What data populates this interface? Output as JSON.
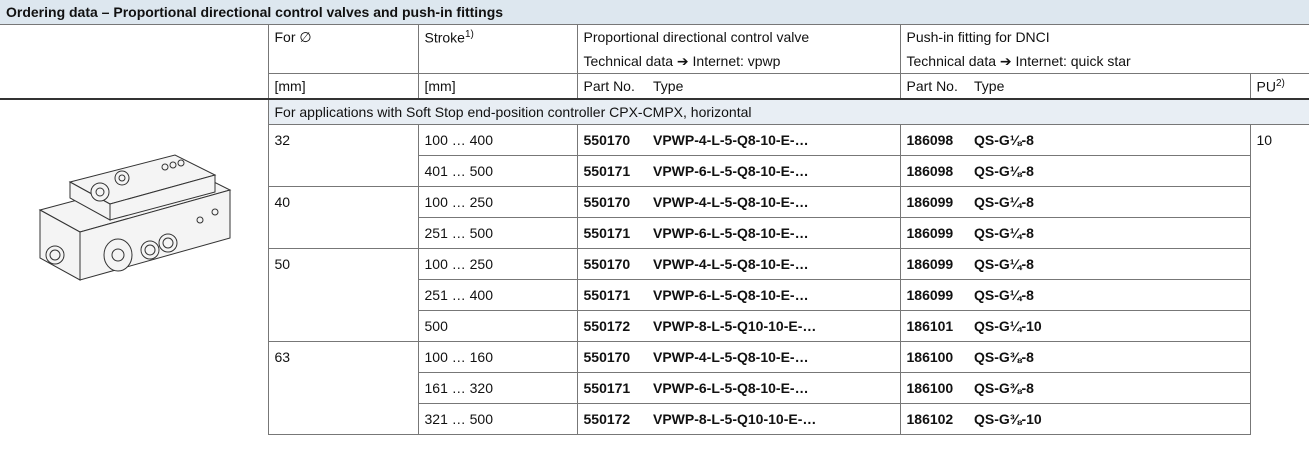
{
  "header": {
    "title": "Ordering data – Proportional directional control valves and push-in fittings"
  },
  "columns": {
    "diameter": "For ∅",
    "stroke": "Stroke",
    "stroke_note": "1)",
    "valve": "Proportional directional control valve",
    "valve_info": "Technical data ➔ Internet: vpwp",
    "fitting": "Push-in fitting for DNCI",
    "fitting_info": "Technical data ➔ Internet: quick star",
    "diameter_unit": "[mm]",
    "stroke_unit": "[mm]",
    "valve_part_no": "Part No.",
    "valve_type": "Type",
    "fitting_part_no": "Part No.",
    "fitting_type": "Type",
    "pu": "PU",
    "pu_note": "2)"
  },
  "subheader": "For applications with Soft Stop end-position controller CPX-CMPX, horizontal",
  "pu": "10",
  "groups": [
    {
      "diameter": "32",
      "rows": [
        {
          "stroke": "100 … 400",
          "part_no": "550170",
          "type": "VPWP-4-L-5-Q8-10-E-…",
          "fitting_part_no": "186098",
          "fitting_type": "QS-G⅛-8"
        },
        {
          "stroke": "401 … 500",
          "part_no": "550171",
          "type": "VPWP-6-L-5-Q8-10-E-…",
          "fitting_part_no": "186098",
          "fitting_type": "QS-G⅛-8"
        }
      ]
    },
    {
      "diameter": "40",
      "rows": [
        {
          "stroke": "100 … 250",
          "part_no": "550170",
          "type": "VPWP-4-L-5-Q8-10-E-…",
          "fitting_part_no": "186099",
          "fitting_type": "QS-G¼-8"
        },
        {
          "stroke": "251 … 500",
          "part_no": "550171",
          "type": "VPWP-6-L-5-Q8-10-E-…",
          "fitting_part_no": "186099",
          "fitting_type": "QS-G¼-8"
        }
      ]
    },
    {
      "diameter": "50",
      "rows": [
        {
          "stroke": "100 … 250",
          "part_no": "550170",
          "type": "VPWP-4-L-5-Q8-10-E-…",
          "fitting_part_no": "186099",
          "fitting_type": "QS-G¼-8"
        },
        {
          "stroke": "251 … 400",
          "part_no": "550171",
          "type": "VPWP-6-L-5-Q8-10-E-…",
          "fitting_part_no": "186099",
          "fitting_type": "QS-G¼-8"
        },
        {
          "stroke": "500",
          "part_no": "550172",
          "type": "VPWP-8-L-5-Q10-10-E-…",
          "fitting_part_no": "186101",
          "fitting_type": "QS-G¼-10"
        }
      ]
    },
    {
      "diameter": "63",
      "rows": [
        {
          "stroke": "100 … 160",
          "part_no": "550170",
          "type": "VPWP-4-L-5-Q8-10-E-…",
          "fitting_part_no": "186100",
          "fitting_type": "QS-G⅜-8"
        },
        {
          "stroke": "161 … 320",
          "part_no": "550171",
          "type": "VPWP-6-L-5-Q8-10-E-…",
          "fitting_part_no": "186100",
          "fitting_type": "QS-G⅜-8"
        },
        {
          "stroke": "321 … 500",
          "part_no": "550172",
          "type": "VPWP-8-L-5-Q10-10-E-…",
          "fitting_part_no": "186102",
          "fitting_type": "QS-G⅜-10"
        }
      ]
    }
  ]
}
